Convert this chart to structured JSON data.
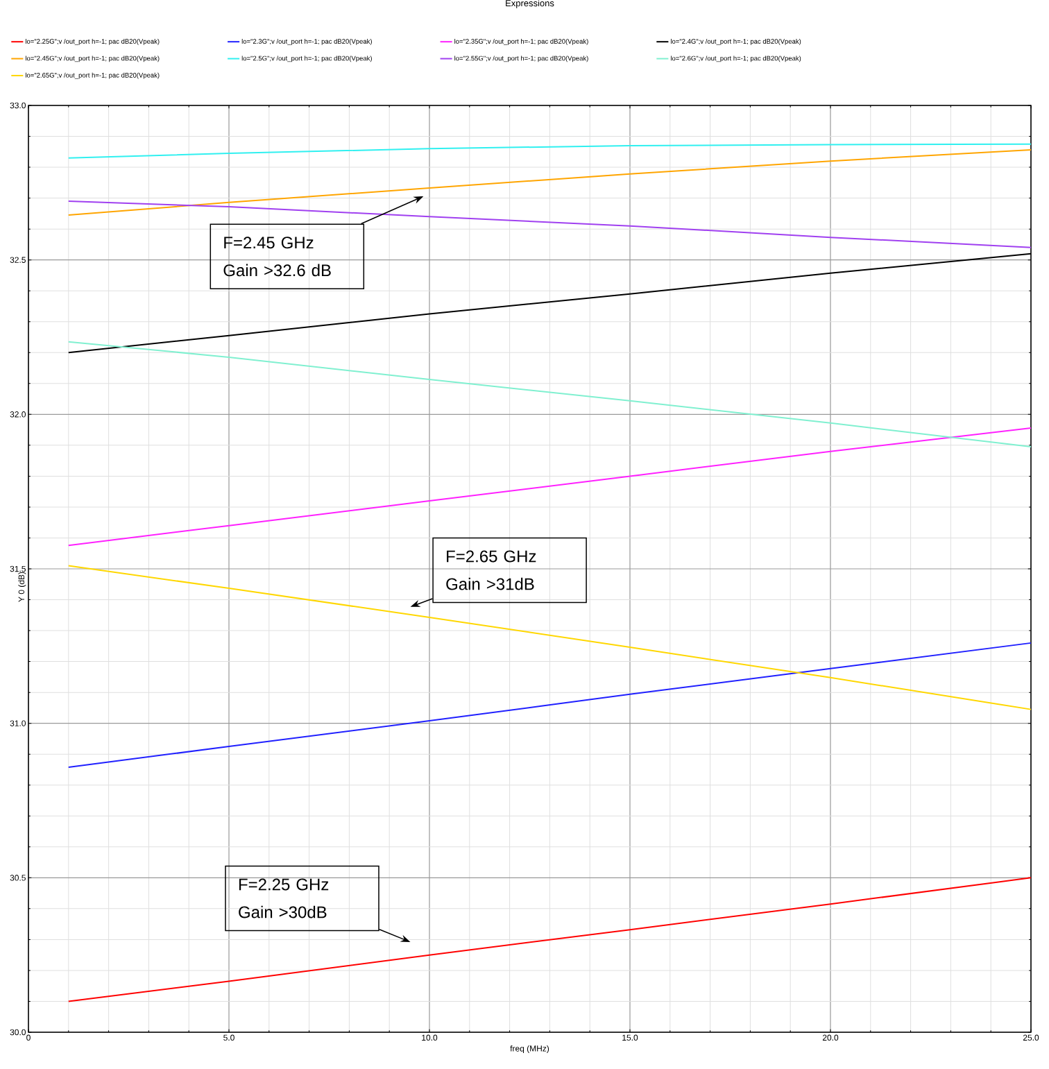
{
  "chart_data": {
    "type": "line",
    "title": "Expressions",
    "xlabel": "freq (MHz)",
    "ylabel": "Y 0 (dB)",
    "x": [
      1,
      5,
      10,
      15,
      20,
      25
    ],
    "series": [
      {
        "name": "lo=\"2.25G\";v /out_port h=-1; pac dB20(Vpeak)",
        "color": "#ff0000",
        "values": [
          30.1,
          30.165,
          30.25,
          30.332,
          30.415,
          30.5
        ]
      },
      {
        "name": "lo=\"2.3G\";v /out_port h=-1; pac dB20(Vpeak)",
        "color": "#2020ff",
        "values": [
          30.858,
          30.925,
          31.008,
          31.094,
          31.177,
          31.26
        ]
      },
      {
        "name": "lo=\"2.35G\";v /out_port h=-1; pac dB20(Vpeak)",
        "color": "#ff20ff",
        "values": [
          31.576,
          31.64,
          31.72,
          31.8,
          31.88,
          31.956
        ]
      },
      {
        "name": "lo=\"2.4G\";v /out_port h=-1; pac dB20(Vpeak)",
        "color": "#000000",
        "values": [
          32.2,
          32.255,
          32.325,
          32.39,
          32.457,
          32.52
        ]
      },
      {
        "name": "lo=\"2.45G\";v /out_port h=-1; pac dB20(Vpeak)",
        "color": "#ffa500",
        "values": [
          32.645,
          32.686,
          32.733,
          32.778,
          32.82,
          32.856
        ]
      },
      {
        "name": "lo=\"2.5G\";v /out_port h=-1; pac dB20(Vpeak)",
        "color": "#30f0f0",
        "values": [
          32.83,
          32.845,
          32.86,
          32.87,
          32.873,
          32.875
        ]
      },
      {
        "name": "lo=\"2.55G\";v /out_port h=-1; pac dB20(Vpeak)",
        "color": "#a040f0",
        "values": [
          32.69,
          32.672,
          32.64,
          32.61,
          32.573,
          32.54
        ]
      },
      {
        "name": "lo=\"2.6G\";v /out_port h=-1; pac dB20(Vpeak)",
        "color": "#80f0d0",
        "values": [
          32.235,
          32.185,
          32.113,
          32.044,
          31.972,
          31.895
        ]
      },
      {
        "name": "lo=\"2.65G\";v /out_port h=-1; pac dB20(Vpeak)",
        "color": "#ffd700",
        "values": [
          31.51,
          31.437,
          31.343,
          31.246,
          31.148,
          31.045
        ]
      }
    ],
    "xlim": [
      0,
      25
    ],
    "ylim": [
      30,
      33
    ],
    "xticks": [
      0,
      {
        "value": 5,
        "label": "5.0"
      },
      {
        "value": 10,
        "label": "10.0"
      },
      {
        "value": 15,
        "label": "15.0"
      },
      {
        "value": 20,
        "label": "20.0"
      },
      {
        "value": 25,
        "label": "25.0"
      }
    ],
    "yticks": [
      {
        "value": 30,
        "label": "30.0"
      },
      30.5,
      {
        "value": 31,
        "label": "31.0"
      },
      31.5,
      {
        "value": 32,
        "label": "32.0"
      },
      32.5,
      {
        "value": 33,
        "label": "33.0"
      }
    ],
    "grid": true,
    "legend": "top",
    "marker": "none",
    "line_style": "solid",
    "annotations": [
      "F=2.45 GHz Gain >32.6 dB",
      "F=2.65 GHz Gain >31dB",
      "F=2.25 GHz Gain >30dB"
    ]
  }
}
